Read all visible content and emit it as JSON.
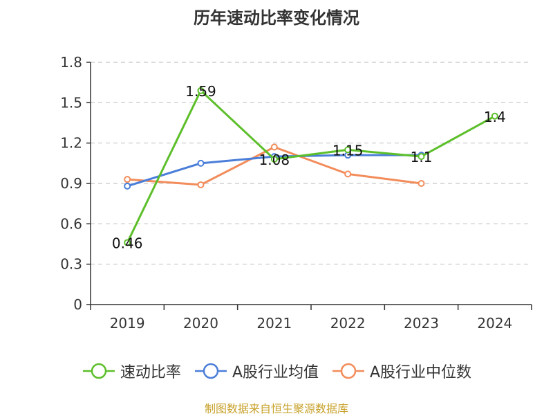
{
  "chart_data": {
    "type": "line",
    "title": "历年速动比率变化情况",
    "categories": [
      "2019",
      "2020",
      "2021",
      "2022",
      "2023",
      "2024"
    ],
    "y_ticks": [
      "0",
      "0.3",
      "0.6",
      "0.9",
      "1.2",
      "1.5",
      "1.8"
    ],
    "ylim": [
      0,
      1.8
    ],
    "grid": "horizontal dashed",
    "legend_position": "bottom",
    "series": [
      {
        "name": "速动比率",
        "color": "#5cbf2a",
        "values": [
          0.46,
          1.59,
          1.08,
          1.15,
          1.1,
          1.4
        ],
        "labels": [
          "0.46",
          "1.59",
          "1.08",
          "1.15",
          "1.1",
          "1.4"
        ]
      },
      {
        "name": "A股行业均值",
        "color": "#4a7ed9",
        "values": [
          0.88,
          1.05,
          1.1,
          1.11,
          1.11,
          null
        ]
      },
      {
        "name": "A股行业中位数",
        "color": "#f28c5a",
        "values": [
          0.93,
          0.89,
          1.17,
          0.97,
          0.9,
          null
        ]
      }
    ]
  },
  "source_text": "制图数据来自恒生聚源数据库"
}
